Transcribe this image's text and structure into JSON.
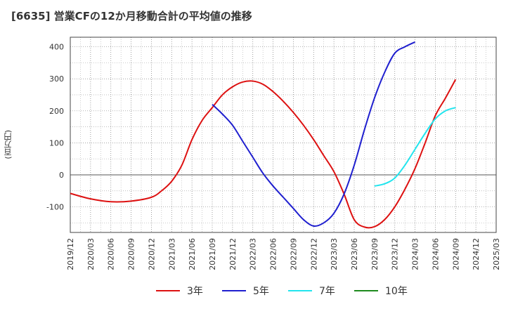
{
  "title": "[6635]  営業CFの12か月移動合計の平均値の推移",
  "y_unit": "(百万円)",
  "chart_data": {
    "type": "line",
    "ylim": [
      -180,
      430
    ],
    "yticks": [
      -100,
      0,
      100,
      200,
      300,
      400
    ],
    "x_categories": [
      "2019/12",
      "2020/03",
      "2020/06",
      "2020/09",
      "2020/12",
      "2021/03",
      "2021/06",
      "2021/09",
      "2021/12",
      "2022/03",
      "2022/06",
      "2022/09",
      "2022/12",
      "2023/03",
      "2023/06",
      "2023/09",
      "2023/12",
      "2024/03",
      "2024/06",
      "2024/09",
      "2024/12",
      "2025/03"
    ],
    "grid": true,
    "legend_position": "bottom",
    "series": [
      {
        "name": "3年",
        "color": "#dd1111",
        "points": [
          [
            0,
            -58
          ],
          [
            1,
            -75
          ],
          [
            2,
            -84
          ],
          [
            3,
            -82
          ],
          [
            4,
            -70
          ],
          [
            4.5,
            -50
          ],
          [
            5,
            -20
          ],
          [
            5.5,
            30
          ],
          [
            6,
            110
          ],
          [
            6.5,
            170
          ],
          [
            7,
            210
          ],
          [
            7.5,
            250
          ],
          [
            8,
            275
          ],
          [
            8.5,
            290
          ],
          [
            9,
            293
          ],
          [
            9.5,
            283
          ],
          [
            10,
            260
          ],
          [
            10.5,
            230
          ],
          [
            11,
            195
          ],
          [
            11.5,
            155
          ],
          [
            12,
            110
          ],
          [
            12.5,
            60
          ],
          [
            13,
            10
          ],
          [
            13.5,
            -60
          ],
          [
            14,
            -140
          ],
          [
            14.5,
            -163
          ],
          [
            15,
            -162
          ],
          [
            15.5,
            -140
          ],
          [
            16,
            -100
          ],
          [
            16.5,
            -45
          ],
          [
            17,
            20
          ],
          [
            17.5,
            100
          ],
          [
            18,
            185
          ],
          [
            18.5,
            240
          ],
          [
            19,
            298
          ]
        ]
      },
      {
        "name": "5年",
        "color": "#1f1fcf",
        "points": [
          [
            7,
            220
          ],
          [
            7.5,
            190
          ],
          [
            8,
            155
          ],
          [
            8.5,
            105
          ],
          [
            9,
            55
          ],
          [
            9.5,
            5
          ],
          [
            10,
            -35
          ],
          [
            10.5,
            -70
          ],
          [
            11,
            -105
          ],
          [
            11.5,
            -140
          ],
          [
            12,
            -160
          ],
          [
            12.5,
            -150
          ],
          [
            13,
            -120
          ],
          [
            13.5,
            -60
          ],
          [
            14,
            30
          ],
          [
            14.5,
            140
          ],
          [
            15,
            240
          ],
          [
            15.5,
            320
          ],
          [
            16,
            380
          ],
          [
            16.5,
            400
          ],
          [
            17,
            415
          ]
        ]
      },
      {
        "name": "7年",
        "color": "#22e5ee",
        "points": [
          [
            15,
            -35
          ],
          [
            15.5,
            -28
          ],
          [
            16,
            -10
          ],
          [
            16.5,
            30
          ],
          [
            17,
            80
          ],
          [
            17.5,
            130
          ],
          [
            18,
            175
          ],
          [
            18.5,
            200
          ],
          [
            19,
            210
          ]
        ]
      },
      {
        "name": "10年",
        "color": "#1e8a1e",
        "points": []
      }
    ]
  }
}
